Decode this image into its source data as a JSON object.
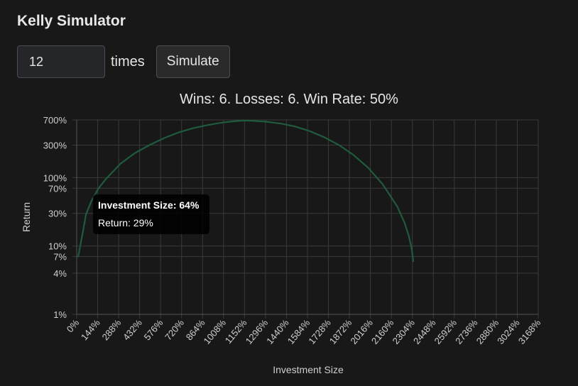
{
  "app": {
    "title": "Kelly Simulator"
  },
  "controls": {
    "count_value": "12",
    "times_label": "times",
    "simulate_label": "Simulate"
  },
  "summary": "Wins: 6. Losses: 6. Win Rate: 50%",
  "tooltip": {
    "title": "Investment Size: 64%",
    "body": "Return: 29%"
  },
  "colors": {
    "line": "#1f5c3c",
    "grid": "#3a3a3a",
    "text": "#cfcfcf",
    "background": "#181818"
  },
  "chart_data": {
    "type": "line",
    "xlabel": "Investment Size",
    "ylabel": "Return",
    "y_scale": "log",
    "xlim": [
      0,
      3168
    ],
    "ylim": [
      1,
      700
    ],
    "x_ticks": [
      "0%",
      "144%",
      "288%",
      "432%",
      "576%",
      "720%",
      "864%",
      "1008%",
      "1152%",
      "1296%",
      "1440%",
      "1584%",
      "1728%",
      "1872%",
      "2016%",
      "2160%",
      "2304%",
      "2448%",
      "2592%",
      "2736%",
      "2880%",
      "3024%",
      "3168%"
    ],
    "y_ticks": [
      {
        "value": 700,
        "label": "700%"
      },
      {
        "value": 300,
        "label": "300%"
      },
      {
        "value": 100,
        "label": "100%"
      },
      {
        "value": 70,
        "label": "70%"
      },
      {
        "value": 30,
        "label": "30%"
      },
      {
        "value": 10,
        "label": "10%"
      },
      {
        "value": 7,
        "label": "7%"
      },
      {
        "value": 4,
        "label": "4%"
      },
      {
        "value": 1,
        "label": "1%"
      }
    ],
    "series": [
      {
        "x": [
          10,
          40,
          64,
          100,
          150,
          200,
          300,
          400,
          500,
          600,
          700,
          800,
          900,
          1000,
          1100,
          1152,
          1200,
          1300,
          1400,
          1500,
          1600,
          1700,
          1800,
          1900,
          2000,
          2100,
          2200,
          2250,
          2280,
          2300,
          2310
        ],
        "y": [
          7,
          15,
          29,
          45,
          70,
          95,
          160,
          230,
          300,
          380,
          460,
          530,
          590,
          640,
          675,
          685,
          680,
          660,
          620,
          560,
          480,
          390,
          300,
          215,
          140,
          80,
          38,
          22,
          14,
          9,
          6
        ]
      }
    ]
  }
}
